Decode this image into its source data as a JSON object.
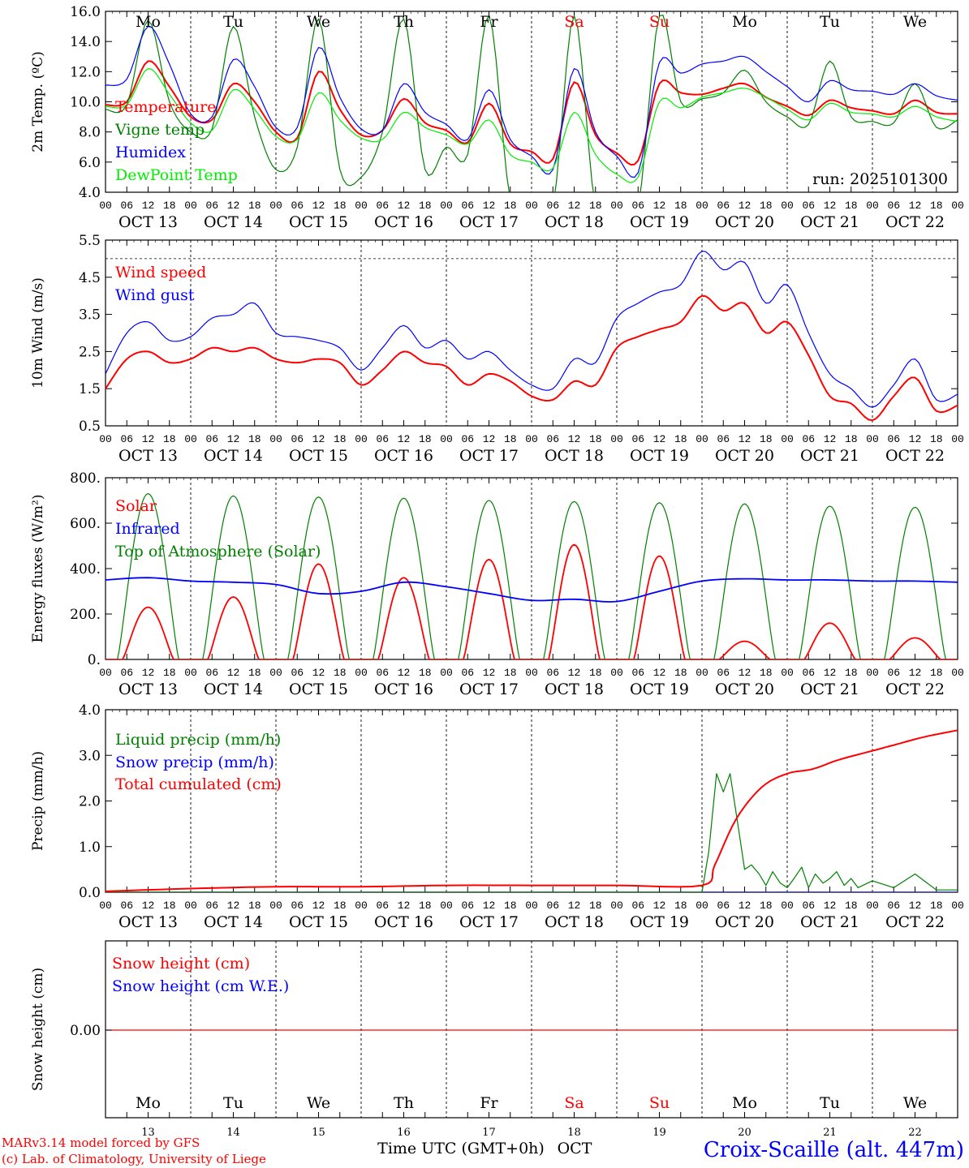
{
  "days": [
    "Mo",
    "Tu",
    "We",
    "Th",
    "Fr",
    "Sa",
    "Su",
    "Mo",
    "Tu",
    "We"
  ],
  "day_colors": [
    "#000000",
    "#000000",
    "#000000",
    "#000000",
    "#000000",
    "#ff0000",
    "#ff0000",
    "#000000",
    "#000000",
    "#000000"
  ],
  "dates": [
    "OCT 13",
    "OCT 14",
    "OCT 15",
    "OCT 16",
    "OCT 17",
    "OCT 18",
    "OCT 19",
    "OCT 20",
    "OCT 21",
    "OCT 22"
  ],
  "date_numbers": [
    "13",
    "14",
    "15",
    "16",
    "17",
    "18",
    "19",
    "20",
    "21",
    "22"
  ],
  "hour_ticks": [
    "00",
    "06",
    "12",
    "18"
  ],
  "month_label": "OCT",
  "footer": {
    "model": "MARv3.14 model forced by GFS",
    "copyright": "(c) Lab. of Climatology, University of Liege",
    "time_axis": "Time UTC (GMT+0h)",
    "station": "Croix-Scaille (alt. 447m)"
  },
  "chart_data": [
    {
      "type": "line",
      "title": "2m Temperature",
      "ylabel": "2m Temp. (ºC)",
      "ylim": [
        4,
        16
      ],
      "yticks": [
        "4.0",
        "6.0",
        "8.0",
        "10.0",
        "12.0",
        "14.0",
        "16.0"
      ],
      "run_label": "run: 2025101300",
      "x": [
        0,
        0.25,
        0.5,
        0.75,
        1,
        1.25,
        1.5,
        1.75,
        2,
        2.25,
        2.5,
        2.75,
        3,
        3.25,
        3.5,
        3.75,
        4,
        4.25,
        4.5,
        4.75,
        5,
        5.25,
        5.5,
        5.75,
        6,
        6.25,
        6.5,
        6.75,
        7,
        7.25,
        7.5,
        7.75,
        8,
        8.25,
        8.5,
        8.75,
        9,
        9.25,
        9.5,
        9.75,
        10
      ],
      "series": [
        {
          "name": "Temperature",
          "color": "#ff0000",
          "values": [
            9.8,
            10,
            12.7,
            11,
            9,
            8.8,
            11.2,
            10,
            8,
            7.6,
            12,
            9.5,
            7.8,
            8.1,
            10.2,
            8.6,
            8.1,
            7.3,
            9.9,
            7.2,
            6.7,
            6.2,
            11.3,
            7.8,
            6.6,
            6.1,
            11.2,
            10.6,
            10.5,
            10.9,
            11.2,
            10.3,
            9.7,
            9.1,
            10.1,
            9.6,
            9.4,
            9.2,
            10.1,
            9.3,
            9.2
          ]
        },
        {
          "name": "Vigne temp",
          "color": "#008000",
          "values": [
            9.5,
            9.8,
            15.4,
            10,
            8,
            8.2,
            15,
            9,
            5.5,
            7,
            15.5,
            5.5,
            5,
            8,
            15.5,
            5.5,
            7,
            6.5,
            15.7,
            3.5,
            3,
            3,
            15.7,
            3,
            3,
            3,
            15.7,
            10,
            10.2,
            10.6,
            12.1,
            10,
            9,
            8.5,
            12.7,
            9,
            8.7,
            8.6,
            11.2,
            8.3,
            8.8
          ]
        },
        {
          "name": "Humidex",
          "color": "#0000ff",
          "values": [
            11.1,
            11.5,
            15,
            12.5,
            9.2,
            9,
            12.8,
            11,
            8.3,
            8.3,
            13.6,
            10.3,
            8.2,
            8.1,
            11.2,
            9.3,
            8.5,
            7.5,
            10.8,
            7.5,
            6.4,
            5.5,
            12.2,
            8,
            6.4,
            5.3,
            12.6,
            11.9,
            12.5,
            12.7,
            13,
            12,
            11,
            10,
            11.4,
            10.8,
            10.7,
            10.5,
            11.2,
            10.4,
            10.1
          ]
        },
        {
          "name": "DewPoint Temp",
          "color": "#00ee00",
          "values": [
            9.7,
            9.8,
            12.2,
            10.5,
            8.6,
            8.1,
            10.8,
            9.5,
            7.7,
            7.5,
            10.6,
            8.8,
            7.6,
            7.5,
            9.3,
            8.3,
            7.8,
            7.2,
            8.8,
            6.5,
            6,
            5.6,
            9.3,
            6.5,
            5.2,
            5,
            10,
            9.6,
            10.3,
            10.6,
            10.9,
            10.3,
            9.5,
            8.8,
            9.9,
            9.3,
            9.2,
            9,
            9.7,
            9,
            8.7
          ]
        }
      ]
    },
    {
      "type": "line",
      "title": "10m Wind",
      "ylabel": "10m Wind (m/s)",
      "ylim": [
        0.5,
        5.5
      ],
      "yticks": [
        "0.5",
        "1.5",
        "2.5",
        "3.5",
        "4.5",
        "5.5"
      ],
      "reference_line": 5,
      "x": [
        0,
        0.25,
        0.5,
        0.75,
        1,
        1.25,
        1.5,
        1.75,
        2,
        2.25,
        2.5,
        2.75,
        3,
        3.25,
        3.5,
        3.75,
        4,
        4.25,
        4.5,
        4.75,
        5,
        5.25,
        5.5,
        5.75,
        6,
        6.25,
        6.5,
        6.75,
        7,
        7.25,
        7.5,
        7.75,
        8,
        8.25,
        8.5,
        8.75,
        9,
        9.25,
        9.5,
        9.75,
        10
      ],
      "series": [
        {
          "name": "Wind speed",
          "color": "#ff0000",
          "values": [
            1.5,
            2.3,
            2.5,
            2.2,
            2.3,
            2.6,
            2.5,
            2.6,
            2.3,
            2.2,
            2.3,
            2.2,
            1.6,
            2.0,
            2.5,
            2.2,
            2.1,
            1.6,
            1.9,
            1.7,
            1.3,
            1.2,
            1.7,
            1.6,
            2.6,
            2.9,
            3.1,
            3.3,
            4.0,
            3.6,
            3.8,
            3.0,
            3.3,
            2.4,
            1.3,
            1.1,
            0.65,
            1.3,
            1.8,
            0.9,
            1.05
          ]
        },
        {
          "name": "Wind gust",
          "color": "#0000ff",
          "values": [
            1.9,
            3.0,
            3.3,
            2.8,
            2.9,
            3.4,
            3.5,
            3.8,
            3.0,
            2.9,
            2.8,
            2.6,
            2.0,
            2.6,
            3.2,
            2.6,
            2.8,
            2.3,
            2.5,
            2.0,
            1.6,
            1.5,
            2.3,
            2.2,
            3.4,
            3.8,
            4.1,
            4.3,
            5.2,
            4.7,
            4.9,
            3.8,
            4.3,
            3.0,
            1.9,
            1.5,
            1.0,
            1.6,
            2.3,
            1.2,
            1.35
          ]
        }
      ]
    },
    {
      "type": "line",
      "title": "Energy fluxes",
      "ylabel": "Energy fluxes (W/m²)",
      "ylim": [
        0,
        800
      ],
      "yticks": [
        "0.",
        "200.",
        "400.",
        "600.",
        "800."
      ],
      "daily_peaks": {
        "Solar": [
          230,
          275,
          420,
          360,
          440,
          505,
          455,
          80,
          160,
          95
        ],
        "Top of Atmosphere (Solar)": [
          730,
          720,
          715,
          710,
          700,
          695,
          690,
          685,
          675,
          670
        ]
      },
      "series": [
        {
          "name": "Solar",
          "color": "#ff0000"
        },
        {
          "name": "Infrared",
          "color": "#0000ff",
          "x": [
            0,
            0.5,
            1,
            1.5,
            2,
            2.5,
            3,
            3.5,
            4,
            4.5,
            5,
            5.5,
            6,
            6.5,
            7,
            7.5,
            8,
            8.5,
            9,
            9.5,
            10
          ],
          "values": [
            350,
            360,
            345,
            340,
            330,
            290,
            300,
            340,
            320,
            290,
            260,
            265,
            255,
            300,
            345,
            355,
            350,
            350,
            345,
            345,
            340
          ]
        },
        {
          "name": "Top of Atmosphere (Solar)",
          "color": "#008000"
        }
      ]
    },
    {
      "type": "line",
      "title": "Precipitation",
      "ylabel": "Precip (mm/h)",
      "ylim": [
        0,
        4
      ],
      "yticks": [
        "0.0",
        "1.0",
        "2.0",
        "3.0",
        "4.0"
      ],
      "series": [
        {
          "name": "Liquid precip (mm/h)",
          "color": "#008000",
          "x": [
            0,
            7,
            7.08,
            7.17,
            7.25,
            7.33,
            7.42,
            7.5,
            7.58,
            7.67,
            7.75,
            7.83,
            7.92,
            8,
            8.08,
            8.17,
            8.25,
            8.33,
            8.42,
            8.5,
            8.58,
            8.67,
            8.75,
            8.83,
            9,
            9.25,
            9.5,
            9.75,
            10
          ],
          "values": [
            0,
            0,
            0.9,
            2.6,
            2.2,
            2.6,
            1.5,
            0.5,
            0.6,
            0.4,
            0.15,
            0.45,
            0.2,
            0.1,
            0.3,
            0.55,
            0.1,
            0.4,
            0.2,
            0.3,
            0.45,
            0.15,
            0.3,
            0.1,
            0.25,
            0.1,
            0.4,
            0.05,
            0.05
          ]
        },
        {
          "name": "Snow precip (mm/h)",
          "color": "#0000ff",
          "x": [
            0,
            10
          ],
          "values": [
            0,
            0
          ]
        },
        {
          "name": "Total cumulated (cm)",
          "color": "#ff0000",
          "x": [
            0,
            1,
            2,
            3,
            4,
            5,
            6,
            7,
            7.15,
            7.4,
            7.7,
            8,
            8.3,
            8.6,
            9,
            9.3,
            9.6,
            10
          ],
          "values": [
            0.02,
            0.08,
            0.12,
            0.12,
            0.15,
            0.15,
            0.15,
            0.15,
            0.6,
            1.6,
            2.3,
            2.6,
            2.7,
            2.9,
            3.1,
            3.25,
            3.4,
            3.55
          ]
        }
      ]
    },
    {
      "type": "line",
      "title": "Snow height",
      "ylabel": "Snow height (cm)",
      "yticks": [
        "0.00"
      ],
      "series": [
        {
          "name": "Snow height (cm)",
          "color": "#ff0000",
          "x": [
            0,
            10
          ],
          "values": [
            0,
            0
          ]
        },
        {
          "name": "Snow height (cm W.E.)",
          "color": "#0000ff",
          "x": [
            0,
            10
          ],
          "values": [
            0,
            0
          ]
        }
      ]
    }
  ]
}
